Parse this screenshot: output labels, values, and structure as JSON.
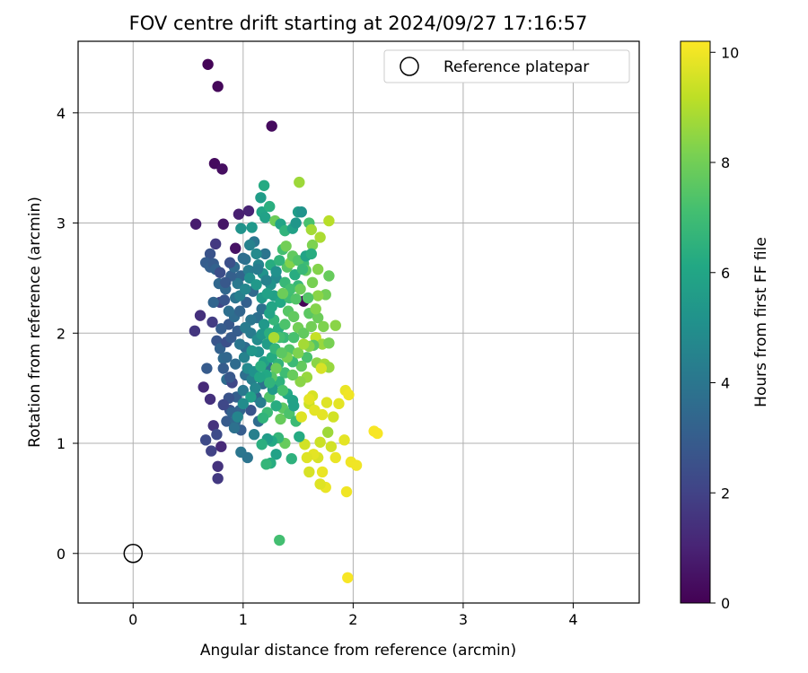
{
  "chart_data": {
    "type": "scatter",
    "title": "FOV centre drift starting at 2024/09/27 17:16:57",
    "xlabel": "Angular distance from reference (arcmin)",
    "ylabel": "Rotation from reference (arcmin)",
    "xlim": [
      -0.5,
      4.6
    ],
    "ylim": [
      -0.45,
      4.65
    ],
    "xticks": [
      "0",
      "1",
      "2",
      "3",
      "4"
    ],
    "yticks": [
      "0",
      "1",
      "2",
      "3",
      "4"
    ],
    "grid": true,
    "legend": {
      "location": "top-right",
      "entries": [
        "Reference platepar"
      ]
    },
    "reference_point": {
      "x": 0,
      "y": 0
    },
    "colorbar": {
      "label": "Hours from first FF file",
      "range": [
        0,
        10.2
      ],
      "ticks": [
        "0",
        "2",
        "4",
        "6",
        "8",
        "10"
      ],
      "colormap": "viridis"
    },
    "points": [
      [
        0.68,
        4.44,
        0.1
      ],
      [
        0.77,
        4.24,
        0.2
      ],
      [
        1.26,
        3.88,
        0.3
      ],
      [
        0.74,
        3.54,
        0.3
      ],
      [
        0.81,
        3.49,
        0.4
      ],
      [
        0.57,
        2.99,
        0.8
      ],
      [
        0.82,
        2.99,
        0.6
      ],
      [
        0.96,
        3.08,
        0.9
      ],
      [
        1.05,
        3.11,
        1.0
      ],
      [
        0.93,
        2.77,
        0.5
      ],
      [
        0.7,
        2.72,
        2.6
      ],
      [
        0.75,
        2.81,
        1.7
      ],
      [
        0.61,
        2.16,
        1.4
      ],
      [
        0.56,
        2.02,
        1.6
      ],
      [
        0.72,
        2.1,
        1.8
      ],
      [
        0.64,
        1.51,
        1.2
      ],
      [
        0.7,
        1.4,
        1.4
      ],
      [
        0.73,
        1.16,
        1.5
      ],
      [
        0.66,
        1.03,
        2.3
      ],
      [
        0.71,
        0.93,
        2.0
      ],
      [
        0.77,
        0.79,
        1.5
      ],
      [
        0.77,
        0.68,
        1.7
      ],
      [
        0.8,
        0.97,
        1.2
      ],
      [
        0.76,
        1.08,
        2.3
      ],
      [
        0.85,
        1.2,
        2.9
      ],
      [
        0.67,
        1.68,
        2.9
      ],
      [
        0.66,
        2.64,
        3.0
      ],
      [
        0.7,
        2.6,
        3.1
      ],
      [
        0.73,
        2.63,
        2.9
      ],
      [
        0.75,
        2.58,
        3.2
      ],
      [
        0.78,
        2.45,
        3.4
      ],
      [
        0.79,
        2.28,
        2.1
      ],
      [
        0.73,
        2.28,
        3.3
      ],
      [
        0.84,
        2.4,
        3.4
      ],
      [
        0.76,
        1.93,
        2.7
      ],
      [
        0.79,
        1.86,
        3.2
      ],
      [
        0.82,
        1.77,
        3.5
      ],
      [
        0.87,
        2.08,
        2.8
      ],
      [
        0.92,
        2.15,
        3.6
      ],
      [
        0.95,
        2.02,
        3.0
      ],
      [
        0.85,
        1.58,
        3.6
      ],
      [
        0.9,
        1.55,
        2.2
      ],
      [
        0.94,
        1.42,
        3.1
      ],
      [
        0.97,
        1.3,
        3.3
      ],
      [
        0.88,
        1.3,
        2.6
      ],
      [
        0.93,
        1.2,
        3.4
      ],
      [
        1.0,
        1.48,
        4.1
      ],
      [
        1.02,
        1.62,
        3.7
      ],
      [
        0.98,
        0.92,
        4.0
      ],
      [
        1.04,
        0.87,
        3.9
      ],
      [
        1.07,
        1.3,
        2.7
      ],
      [
        1.1,
        1.08,
        4.4
      ],
      [
        1.14,
        1.2,
        3.6
      ],
      [
        1.12,
        1.42,
        3.3
      ],
      [
        1.18,
        1.54,
        3.8
      ],
      [
        1.22,
        1.7,
        3.9
      ],
      [
        1.02,
        1.87,
        3.6
      ],
      [
        1.07,
        2.0,
        4.2
      ],
      [
        1.13,
        2.14,
        3.7
      ],
      [
        1.17,
        2.22,
        3.8
      ],
      [
        1.03,
        2.28,
        3.1
      ],
      [
        1.09,
        2.38,
        3.5
      ],
      [
        0.98,
        2.52,
        3.3
      ],
      [
        1.05,
        2.57,
        4.3
      ],
      [
        1.14,
        2.62,
        4.6
      ],
      [
        1.2,
        2.72,
        3.9
      ],
      [
        0.95,
        2.45,
        4.1
      ],
      [
        1.02,
        2.67,
        3.9
      ],
      [
        1.1,
        2.83,
        4.0
      ],
      [
        1.17,
        3.1,
        6.0
      ],
      [
        1.24,
        3.15,
        6.4
      ],
      [
        1.2,
        3.05,
        5.8
      ],
      [
        1.19,
        3.34,
        6.2
      ],
      [
        1.29,
        3.02,
        7.9
      ],
      [
        1.16,
        3.23,
        5.6
      ],
      [
        1.34,
        2.99,
        5.9
      ],
      [
        1.38,
        2.93,
        6.6
      ],
      [
        1.45,
        2.95,
        5.8
      ],
      [
        1.5,
        3.1,
        5.6
      ],
      [
        1.48,
        3.0,
        5.3
      ],
      [
        1.53,
        3.1,
        5.2
      ],
      [
        1.6,
        3.0,
        7.2
      ],
      [
        1.51,
        3.37,
        8.7
      ],
      [
        1.62,
        2.94,
        8.8
      ],
      [
        1.7,
        2.87,
        8.9
      ],
      [
        1.78,
        3.02,
        9.1
      ],
      [
        1.63,
        2.8,
        8.2
      ],
      [
        1.55,
        2.63,
        6.9
      ],
      [
        1.47,
        2.53,
        6.3
      ],
      [
        1.4,
        2.6,
        7.5
      ],
      [
        1.36,
        2.76,
        7.1
      ],
      [
        1.3,
        2.5,
        4.8
      ],
      [
        1.25,
        2.44,
        5.2
      ],
      [
        1.28,
        2.34,
        5.7
      ],
      [
        1.34,
        2.28,
        6.1
      ],
      [
        1.42,
        2.32,
        7.0
      ],
      [
        1.5,
        2.43,
        6.8
      ],
      [
        1.57,
        2.57,
        7.7
      ],
      [
        1.63,
        2.46,
        8.1
      ],
      [
        1.68,
        2.58,
        8.3
      ],
      [
        1.78,
        2.52,
        7.8
      ],
      [
        1.75,
        2.35,
        8.0
      ],
      [
        1.55,
        2.29,
        0.1
      ],
      [
        1.6,
        2.18,
        7.6
      ],
      [
        1.68,
        2.14,
        7.9
      ],
      [
        1.73,
        2.06,
        8.2
      ],
      [
        1.84,
        2.07,
        8.4
      ],
      [
        1.66,
        1.96,
        9.3
      ],
      [
        1.72,
        1.9,
        8.6
      ],
      [
        1.78,
        1.91,
        8.1
      ],
      [
        1.64,
        1.89,
        7.5
      ],
      [
        1.58,
        1.78,
        7.2
      ],
      [
        1.67,
        1.73,
        8.4
      ],
      [
        1.74,
        1.72,
        8.8
      ],
      [
        1.78,
        1.69,
        8.6
      ],
      [
        1.71,
        1.68,
        9.6
      ],
      [
        1.53,
        1.7,
        7.7
      ],
      [
        1.45,
        1.74,
        6.9
      ],
      [
        1.42,
        1.85,
        7.4
      ],
      [
        1.37,
        1.96,
        6.8
      ],
      [
        1.32,
        2.04,
        6.4
      ],
      [
        1.28,
        2.12,
        6.7
      ],
      [
        1.24,
        2.18,
        5.9
      ],
      [
        1.19,
        2.08,
        5.4
      ],
      [
        1.2,
        1.98,
        7.3
      ],
      [
        1.14,
        1.83,
        5.1
      ],
      [
        1.19,
        1.74,
        5.7
      ],
      [
        1.26,
        1.78,
        6.2
      ],
      [
        1.32,
        1.72,
        6.6
      ],
      [
        1.38,
        1.64,
        7.0
      ],
      [
        1.33,
        1.56,
        6.5
      ],
      [
        1.4,
        1.45,
        6.1
      ],
      [
        1.45,
        1.39,
        5.9
      ],
      [
        1.36,
        1.32,
        7.6
      ],
      [
        1.3,
        1.34,
        6.3
      ],
      [
        1.24,
        1.42,
        7.4
      ],
      [
        1.27,
        1.49,
        5.5
      ],
      [
        1.22,
        1.28,
        6.9
      ],
      [
        1.18,
        1.23,
        6.6
      ],
      [
        1.34,
        1.22,
        7.8
      ],
      [
        1.42,
        1.27,
        7.3
      ],
      [
        1.48,
        1.2,
        6.9
      ],
      [
        1.53,
        1.24,
        9.7
      ],
      [
        1.46,
        1.34,
        5.8
      ],
      [
        1.6,
        1.36,
        9.4
      ],
      [
        1.63,
        1.43,
        9.6
      ],
      [
        1.6,
        1.4,
        9.8
      ],
      [
        1.65,
        1.3,
        9.8
      ],
      [
        1.72,
        1.26,
        9.8
      ],
      [
        1.76,
        1.37,
        9.7
      ],
      [
        1.82,
        1.24,
        9.5
      ],
      [
        1.87,
        1.36,
        9.8
      ],
      [
        1.93,
        1.48,
        9.9
      ],
      [
        1.96,
        1.44,
        10.0
      ],
      [
        1.77,
        1.1,
        8.7
      ],
      [
        1.8,
        0.97,
        9.5
      ],
      [
        1.84,
        0.87,
        9.9
      ],
      [
        1.92,
        1.03,
        9.8
      ],
      [
        1.98,
        0.83,
        10.0
      ],
      [
        2.03,
        0.8,
        10.0
      ],
      [
        2.19,
        1.11,
        10.1
      ],
      [
        2.22,
        1.09,
        10.1
      ],
      [
        1.94,
        0.56,
        10.0
      ],
      [
        1.95,
        -0.22,
        10.1
      ],
      [
        1.75,
        0.6,
        9.9
      ],
      [
        1.7,
        0.63,
        9.7
      ],
      [
        1.72,
        0.74,
        9.9
      ],
      [
        1.68,
        0.87,
        9.6
      ],
      [
        1.64,
        0.9,
        9.8
      ],
      [
        1.58,
        0.87,
        9.7
      ],
      [
        1.56,
        0.99,
        9.5
      ],
      [
        1.6,
        0.74,
        9.6
      ],
      [
        1.7,
        1.01,
        9.4
      ],
      [
        1.51,
        1.06,
        6.2
      ],
      [
        1.44,
        0.86,
        6.5
      ],
      [
        1.38,
        1.0,
        7.8
      ],
      [
        1.32,
        1.05,
        6.7
      ],
      [
        1.3,
        0.9,
        5.8
      ],
      [
        1.26,
        1.02,
        6.1
      ],
      [
        1.22,
        1.04,
        5.6
      ],
      [
        1.25,
        0.82,
        6.3
      ],
      [
        1.21,
        0.81,
        6.7
      ],
      [
        1.17,
        0.99,
        6.4
      ],
      [
        1.33,
        0.12,
        7.1
      ],
      [
        0.98,
        1.12,
        3.0
      ],
      [
        0.9,
        1.28,
        3.2
      ],
      [
        0.87,
        1.41,
        2.6
      ],
      [
        0.82,
        1.35,
        2.2
      ],
      [
        0.85,
        1.92,
        2.5
      ],
      [
        0.89,
        1.96,
        2.9
      ],
      [
        0.93,
        1.72,
        3.6
      ],
      [
        0.97,
        1.9,
        4.0
      ],
      [
        1.01,
        1.78,
        4.5
      ],
      [
        1.04,
        1.68,
        4.8
      ],
      [
        1.08,
        1.58,
        4.4
      ],
      [
        1.11,
        1.5,
        4.7
      ],
      [
        1.16,
        1.37,
        4.3
      ],
      [
        1.1,
        1.65,
        5.1
      ],
      [
        1.08,
        1.84,
        5.3
      ],
      [
        1.13,
        1.94,
        4.9
      ],
      [
        1.17,
        1.99,
        5.3
      ],
      [
        1.22,
        1.9,
        5.6
      ],
      [
        1.24,
        2.0,
        6.4
      ],
      [
        1.29,
        1.86,
        6.7
      ],
      [
        1.33,
        1.96,
        7.1
      ],
      [
        1.38,
        2.08,
        7.3
      ],
      [
        1.41,
        2.2,
        7.5
      ],
      [
        1.46,
        2.15,
        7.7
      ],
      [
        1.5,
        2.05,
        8.0
      ],
      [
        1.55,
        2.0,
        7.7
      ],
      [
        1.6,
        1.88,
        8.3
      ],
      [
        1.46,
        1.96,
        7.2
      ],
      [
        1.4,
        1.78,
        8.1
      ],
      [
        1.35,
        1.82,
        7.6
      ],
      [
        1.3,
        1.68,
        7.9
      ],
      [
        1.26,
        1.6,
        7.5
      ],
      [
        1.21,
        1.62,
        6.1
      ],
      [
        1.16,
        1.7,
        6.4
      ],
      [
        1.07,
        2.12,
        4.0
      ],
      [
        1.02,
        2.05,
        4.2
      ],
      [
        0.97,
        2.2,
        3.3
      ],
      [
        0.93,
        2.32,
        3.9
      ],
      [
        0.89,
        2.52,
        3.1
      ],
      [
        0.92,
        2.6,
        3.5
      ],
      [
        0.97,
        2.34,
        4.4
      ],
      [
        1.02,
        2.4,
        4.7
      ],
      [
        1.06,
        2.5,
        5.0
      ],
      [
        1.12,
        2.44,
        5.4
      ],
      [
        1.17,
        2.32,
        5.5
      ],
      [
        1.22,
        2.36,
        5.8
      ],
      [
        1.26,
        2.24,
        6.0
      ],
      [
        1.18,
        2.54,
        5.2
      ],
      [
        1.25,
        2.62,
        6.3
      ],
      [
        1.33,
        2.66,
        6.6
      ],
      [
        1.38,
        2.46,
        6.8
      ],
      [
        1.43,
        2.4,
        7.1
      ],
      [
        1.48,
        2.31,
        7.4
      ],
      [
        1.52,
        2.4,
        7.9
      ],
      [
        1.43,
        2.64,
        8.3
      ],
      [
        1.39,
        2.79,
        8.0
      ],
      [
        1.45,
        2.7,
        7.7
      ],
      [
        1.5,
        2.66,
        7.4
      ],
      [
        1.57,
        2.7,
        5.9
      ],
      [
        1.62,
        2.72,
        6.3
      ],
      [
        1.54,
        2.58,
        6.8
      ],
      [
        1.68,
        2.34,
        8.4
      ],
      [
        1.58,
        1.6,
        8.6
      ],
      [
        1.52,
        1.56,
        8.4
      ],
      [
        1.45,
        1.62,
        7.8
      ],
      [
        1.5,
        1.82,
        8.2
      ],
      [
        1.55,
        1.9,
        8.8
      ],
      [
        1.62,
        2.06,
        8.0
      ],
      [
        1.66,
        2.22,
        8.3
      ],
      [
        1.59,
        2.32,
        7.4
      ],
      [
        1.36,
        2.36,
        7.9
      ],
      [
        1.28,
        1.96,
        8.9
      ],
      [
        1.36,
        1.48,
        7.2
      ],
      [
        1.24,
        1.55,
        6.6
      ],
      [
        1.15,
        1.6,
        6.0
      ],
      [
        1.07,
        1.42,
        5.7
      ],
      [
        1.0,
        1.36,
        4.9
      ],
      [
        0.95,
        1.24,
        4.6
      ],
      [
        0.92,
        1.14,
        3.8
      ],
      [
        0.88,
        1.6,
        2.8
      ],
      [
        0.82,
        1.68,
        3.0
      ],
      [
        0.85,
        1.78,
        3.4
      ],
      [
        0.8,
        2.04,
        3.0
      ],
      [
        0.87,
        2.2,
        3.7
      ],
      [
        0.83,
        2.3,
        2.7
      ],
      [
        0.79,
        2.55,
        2.4
      ],
      [
        0.88,
        2.64,
        2.5
      ],
      [
        0.84,
        2.46,
        2.8
      ],
      [
        1.0,
        2.68,
        3.7
      ],
      [
        1.06,
        2.8,
        4.5
      ],
      [
        1.12,
        2.72,
        4.8
      ],
      [
        1.08,
        2.96,
        5.4
      ],
      [
        0.98,
        2.95,
        5.2
      ],
      [
        1.13,
        2.58,
        4.2
      ],
      [
        1.21,
        2.48,
        4.5
      ],
      [
        1.3,
        2.56,
        5.1
      ]
    ]
  }
}
